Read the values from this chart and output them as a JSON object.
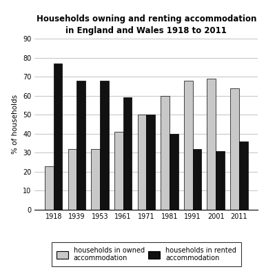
{
  "title_line1": "Households owning and renting accommodation",
  "title_line2": "in England and Wales 1918 to 2011",
  "years": [
    "1918",
    "1939",
    "1953",
    "1961",
    "1971",
    "1981",
    "1991",
    "2001",
    "2011"
  ],
  "owned": [
    23,
    32,
    32,
    41,
    50,
    60,
    68,
    69,
    64
  ],
  "rented": [
    77,
    68,
    68,
    59,
    50,
    40,
    32,
    31,
    36
  ],
  "owned_color": "#c8c8c8",
  "rented_color": "#111111",
  "ylabel": "% of households",
  "ylim": [
    0,
    90
  ],
  "yticks": [
    0,
    10,
    20,
    30,
    40,
    50,
    60,
    70,
    80,
    90
  ],
  "legend_owned": "households in owned\naccommodation",
  "legend_rented": "households in rented\naccommodation",
  "title_fontsize": 8.5,
  "axis_fontsize": 7.5,
  "tick_fontsize": 7,
  "legend_fontsize": 7,
  "bar_width": 0.38,
  "background_color": "#ffffff"
}
